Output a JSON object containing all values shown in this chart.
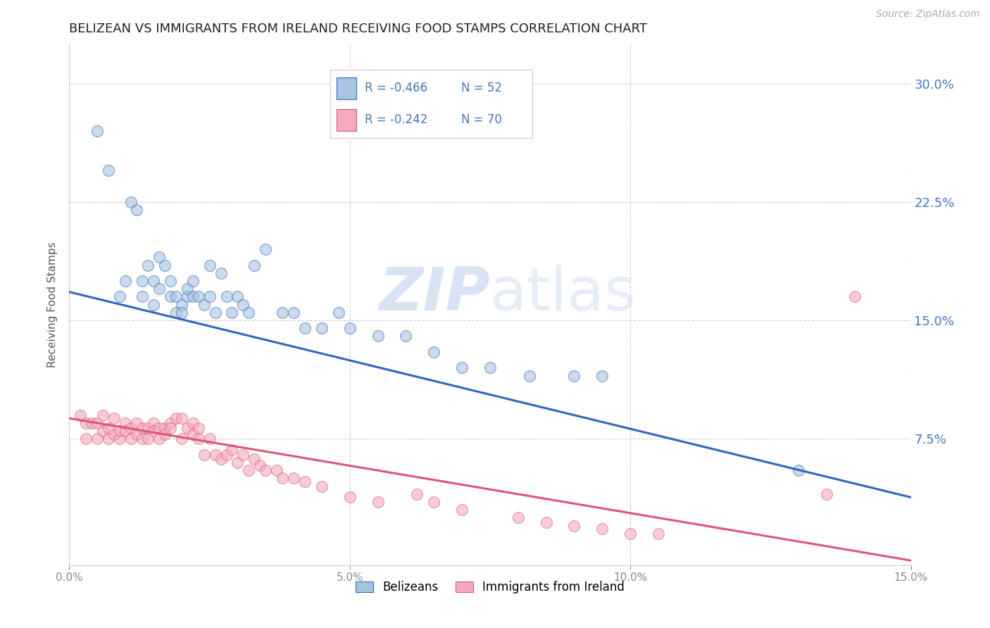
{
  "title": "BELIZEAN VS IMMIGRANTS FROM IRELAND RECEIVING FOOD STAMPS CORRELATION CHART",
  "source": "Source: ZipAtlas.com",
  "ylabel": "Receiving Food Stamps",
  "right_ytick_labels": [
    "30.0%",
    "22.5%",
    "15.0%",
    "7.5%"
  ],
  "right_ytick_values": [
    0.3,
    0.225,
    0.15,
    0.075
  ],
  "xlim": [
    0.0,
    0.15
  ],
  "ylim": [
    -0.005,
    0.325
  ],
  "blue_label": "Belizeans",
  "pink_label": "Immigrants from Ireland",
  "blue_R": -0.466,
  "blue_N": 52,
  "pink_R": -0.242,
  "pink_N": 70,
  "blue_color": "#A8C4E0",
  "pink_color": "#F4AABC",
  "blue_line_color": "#3366BB",
  "pink_line_color": "#DD5577",
  "watermark_zip": "ZIP",
  "watermark_atlas": "atlas",
  "blue_line_x0": 0.0,
  "blue_line_y0": 0.168,
  "blue_line_x1": 0.15,
  "blue_line_y1": 0.038,
  "pink_line_x0": 0.0,
  "pink_line_y0": 0.088,
  "pink_line_x1": 0.15,
  "pink_line_y1": -0.002,
  "blue_scatter_x": [
    0.005,
    0.007,
    0.009,
    0.01,
    0.011,
    0.012,
    0.013,
    0.013,
    0.014,
    0.015,
    0.015,
    0.016,
    0.016,
    0.017,
    0.018,
    0.018,
    0.019,
    0.019,
    0.02,
    0.02,
    0.021,
    0.021,
    0.022,
    0.022,
    0.023,
    0.024,
    0.025,
    0.025,
    0.026,
    0.027,
    0.028,
    0.029,
    0.03,
    0.031,
    0.032,
    0.033,
    0.035,
    0.038,
    0.04,
    0.042,
    0.045,
    0.048,
    0.05,
    0.055,
    0.06,
    0.065,
    0.07,
    0.075,
    0.082,
    0.09,
    0.095,
    0.13
  ],
  "blue_scatter_y": [
    0.27,
    0.245,
    0.165,
    0.175,
    0.225,
    0.22,
    0.165,
    0.175,
    0.185,
    0.16,
    0.175,
    0.17,
    0.19,
    0.185,
    0.165,
    0.175,
    0.155,
    0.165,
    0.16,
    0.155,
    0.165,
    0.17,
    0.165,
    0.175,
    0.165,
    0.16,
    0.185,
    0.165,
    0.155,
    0.18,
    0.165,
    0.155,
    0.165,
    0.16,
    0.155,
    0.185,
    0.195,
    0.155,
    0.155,
    0.145,
    0.145,
    0.155,
    0.145,
    0.14,
    0.14,
    0.13,
    0.12,
    0.12,
    0.115,
    0.115,
    0.115,
    0.055
  ],
  "pink_scatter_x": [
    0.002,
    0.003,
    0.003,
    0.004,
    0.005,
    0.005,
    0.006,
    0.006,
    0.007,
    0.007,
    0.008,
    0.008,
    0.009,
    0.009,
    0.01,
    0.01,
    0.011,
    0.011,
    0.012,
    0.012,
    0.013,
    0.013,
    0.014,
    0.014,
    0.015,
    0.015,
    0.016,
    0.016,
    0.017,
    0.017,
    0.018,
    0.018,
    0.019,
    0.02,
    0.02,
    0.021,
    0.022,
    0.022,
    0.023,
    0.023,
    0.024,
    0.025,
    0.026,
    0.027,
    0.028,
    0.029,
    0.03,
    0.031,
    0.032,
    0.033,
    0.034,
    0.035,
    0.037,
    0.038,
    0.04,
    0.042,
    0.045,
    0.05,
    0.055,
    0.062,
    0.065,
    0.07,
    0.08,
    0.085,
    0.09,
    0.095,
    0.1,
    0.105,
    0.135,
    0.14
  ],
  "pink_scatter_y": [
    0.09,
    0.085,
    0.075,
    0.085,
    0.085,
    0.075,
    0.09,
    0.08,
    0.082,
    0.075,
    0.078,
    0.088,
    0.075,
    0.08,
    0.085,
    0.08,
    0.082,
    0.075,
    0.085,
    0.078,
    0.082,
    0.075,
    0.082,
    0.075,
    0.085,
    0.08,
    0.082,
    0.075,
    0.082,
    0.078,
    0.085,
    0.082,
    0.088,
    0.075,
    0.088,
    0.082,
    0.078,
    0.085,
    0.075,
    0.082,
    0.065,
    0.075,
    0.065,
    0.062,
    0.065,
    0.068,
    0.06,
    0.065,
    0.055,
    0.062,
    0.058,
    0.055,
    0.055,
    0.05,
    0.05,
    0.048,
    0.045,
    0.038,
    0.035,
    0.04,
    0.035,
    0.03,
    0.025,
    0.022,
    0.02,
    0.018,
    0.015,
    0.015,
    0.04,
    0.165
  ],
  "xtick_values": [
    0.0,
    0.05,
    0.1,
    0.15
  ],
  "xtick_labels": [
    "0.0%",
    "5.0%",
    "10.0%",
    "15.0%"
  ],
  "grid_color": "#CCCCCC",
  "background_color": "#FFFFFF",
  "title_fontsize": 13,
  "tick_label_color": "#4477BB"
}
